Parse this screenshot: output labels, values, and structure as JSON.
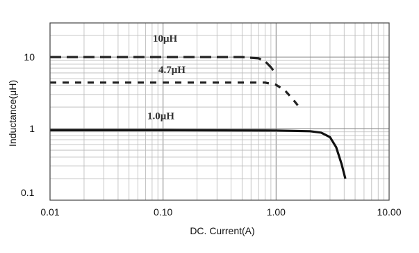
{
  "chart_data": {
    "type": "line",
    "title": "",
    "xlabel": "DC. Current(A)",
    "ylabel": "Inductance(μH)",
    "x_scale": "log",
    "y_scale": "log",
    "xlim": [
      0.01,
      10
    ],
    "ylim": [
      0.1,
      30
    ],
    "x_ticks": [
      {
        "value": 0.01,
        "label": "0.01"
      },
      {
        "value": 0.1,
        "label": "0.10"
      },
      {
        "value": 1,
        "label": "1.00"
      },
      {
        "value": 10,
        "label": "10.00"
      }
    ],
    "y_ticks": [
      {
        "value": 0.1,
        "label": "0.1"
      },
      {
        "value": 1,
        "label": "1"
      },
      {
        "value": 10,
        "label": "10"
      }
    ],
    "grid": true,
    "series": [
      {
        "name": "10μH",
        "style": "long-dash",
        "color": "#222222",
        "x": [
          0.01,
          0.1,
          0.5,
          0.7,
          0.8,
          0.9,
          1.0
        ],
        "y": [
          10,
          10,
          10,
          9.6,
          8.7,
          7.2,
          5.8
        ]
      },
      {
        "name": "4.7μH",
        "style": "short-dash",
        "color": "#222222",
        "x": [
          0.01,
          0.1,
          0.8,
          1.0,
          1.2,
          1.4,
          1.6
        ],
        "y": [
          4.4,
          4.4,
          4.4,
          4.1,
          3.4,
          2.6,
          2.0
        ]
      },
      {
        "name": "1.0μH",
        "style": "solid",
        "color": "#111111",
        "x": [
          0.01,
          0.1,
          1.0,
          2.0,
          2.5,
          3.0,
          3.4,
          3.8,
          4.1
        ],
        "y": [
          0.95,
          0.95,
          0.94,
          0.92,
          0.88,
          0.76,
          0.55,
          0.32,
          0.2
        ]
      }
    ]
  }
}
